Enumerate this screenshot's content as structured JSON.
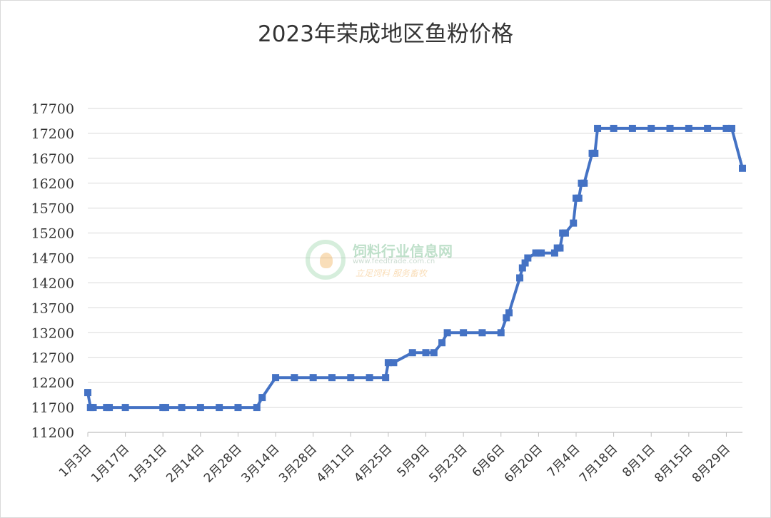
{
  "chart_data": {
    "type": "line",
    "title": "2023年荣成地区鱼粉价格",
    "xlabel": "",
    "ylabel": "",
    "ylim": [
      11200,
      17700
    ],
    "yticks": [
      11200,
      11700,
      12200,
      12700,
      13200,
      13700,
      14200,
      14700,
      15200,
      15700,
      16200,
      16700,
      17200,
      17700
    ],
    "categories": [
      "1月3日",
      "1月17日",
      "1月31日",
      "2月14日",
      "2月28日",
      "3月14日",
      "3月28日",
      "4月11日",
      "4月25日",
      "5月9日",
      "5月23日",
      "6月6日",
      "6月20日",
      "7月4日",
      "7月18日",
      "8月1日",
      "8月15日",
      "8月29日"
    ],
    "grid": true,
    "legend": "none",
    "series_color": "#4472C4",
    "series": [
      {
        "x": [
          "1月3日",
          "1月4日",
          "1月5日",
          "1月10日",
          "1月11日",
          "1月17日",
          "1月31日",
          "2月1日",
          "2月7日",
          "2月14日",
          "2月21日",
          "2月28日",
          "3月7日",
          "3月9日",
          "3月14日",
          "3月21日",
          "3月28日",
          "4月4日",
          "4月11日",
          "4月18日",
          "4月24日",
          "4月25日",
          "4月27日",
          "5月4日",
          "5月9日",
          "5月12日",
          "5月15日",
          "5月17日",
          "5月23日",
          "5月30日",
          "6月6日",
          "6月8日",
          "6月9日",
          "6月13日",
          "6月14日",
          "6月15日",
          "6月16日",
          "6月19日",
          "6月20日",
          "6月21日",
          "6月26日",
          "6月27日",
          "6月28日",
          "6月29日",
          "6月30日",
          "7月3日",
          "7月4日",
          "7月5日",
          "7月6日",
          "7月7日",
          "7月10日",
          "7月11日",
          "7月12日",
          "7月18日",
          "7月25日",
          "8月1日",
          "8月8日",
          "8月15日",
          "8月22日",
          "8月29日",
          "8月31日",
          "9月4日"
        ],
        "values": [
          12000,
          11700,
          11700,
          11700,
          11700,
          11700,
          11700,
          11700,
          11700,
          11700,
          11700,
          11700,
          11700,
          11900,
          12300,
          12300,
          12300,
          12300,
          12300,
          12300,
          12300,
          12600,
          12600,
          12800,
          12800,
          12800,
          13000,
          13200,
          13200,
          13200,
          13200,
          13500,
          13600,
          14300,
          14500,
          14600,
          14700,
          14800,
          14800,
          14800,
          14800,
          14900,
          14900,
          15200,
          15200,
          15400,
          15900,
          15900,
          16200,
          16200,
          16800,
          16800,
          17300,
          17300,
          17300,
          17300,
          17300,
          17300,
          17300,
          17300,
          17300,
          16500
        ]
      }
    ]
  },
  "watermark": {
    "name": "饲料行业信息网",
    "url": "www.feedtrade.com.cn",
    "slogan": "立足饲料  服务畜牧"
  }
}
